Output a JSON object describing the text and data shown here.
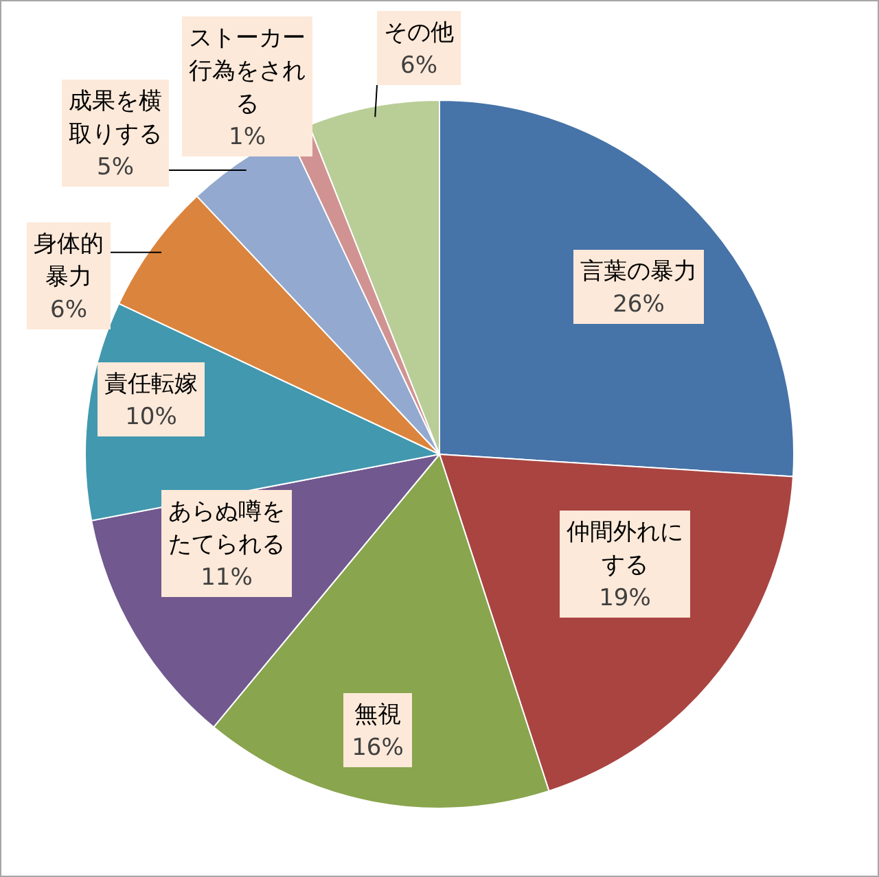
{
  "chart_data": {
    "type": "pie",
    "categories": [
      "言葉の暴力",
      "仲間外れにする",
      "無視",
      "あらぬ噂をたてられる",
      "責任転嫁",
      "身体的暴力",
      "成果を横取りする",
      "ストーカー行為をされる",
      "その他"
    ],
    "values": [
      26,
      19,
      16,
      11,
      10,
      6,
      5,
      1,
      6
    ],
    "value_labels": [
      "26%",
      "19%",
      "16%",
      "11%",
      "10%",
      "6%",
      "5%",
      "1%",
      "6%"
    ],
    "colors": [
      "#4673a8",
      "#a94441",
      "#89a54e",
      "#71588f",
      "#4198af",
      "#db843d",
      "#93a9cf",
      "#d19392",
      "#b9cd96"
    ]
  }
}
